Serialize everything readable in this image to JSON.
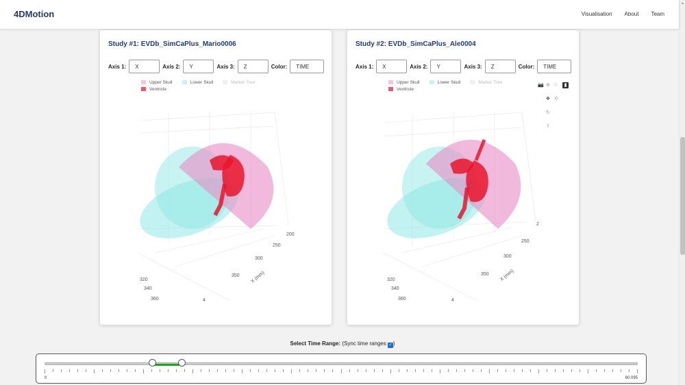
{
  "app": {
    "brand": "4DMotion"
  },
  "nav": [
    {
      "label": "Visualisation"
    },
    {
      "label": "About"
    },
    {
      "label": "Team"
    }
  ],
  "studies": [
    {
      "title": "Study #1: EVDb_SimCaPlus_Mario0006",
      "axis1_label": "Axis 1:",
      "axis1_value": "X",
      "axis2_label": "Axis 2:",
      "axis2_value": "Y",
      "axis3_label": "Axis 3:",
      "axis3_value": "Z",
      "color_label": "Color:",
      "color_value": "TIME",
      "legend": [
        {
          "label": "Upper Skull"
        },
        {
          "label": "Lower Skull"
        },
        {
          "label": "Marker Tree"
        },
        {
          "label": "Ventricle"
        }
      ],
      "axis_ticks": [
        "200",
        "250",
        "300",
        "350",
        "320",
        "340",
        "360",
        "4"
      ],
      "axis_title": "X (mm)"
    },
    {
      "title": "Study #2: EVDb_SimCaPlus_Ale0004",
      "axis1_label": "Axis 1:",
      "axis1_value": "X",
      "axis2_label": "Axis 2:",
      "axis2_value": "Y",
      "axis3_label": "Axis 3:",
      "axis3_value": "Z",
      "color_label": "Color:",
      "color_value": "TIME",
      "legend": [
        {
          "label": "Upper Skull"
        },
        {
          "label": "Lower Skull"
        },
        {
          "label": "Marker Tree"
        },
        {
          "label": "Ventricle"
        }
      ],
      "axis_ticks": [
        "2",
        "250",
        "300",
        "350",
        "320",
        "340",
        "360",
        "4"
      ],
      "axis_title": "X (mm)"
    }
  ],
  "time_range": {
    "label_bold": "Select Time Range:",
    "label_rest": "(Sync time ranges",
    "label_close": ")",
    "sync_checked": true,
    "min_label": "0",
    "max_label": "60.095",
    "range_start_fraction": 0.183,
    "range_end_fraction": 0.232
  },
  "colors": {
    "brand": "#1f3a78",
    "upper_skull": "#e88cc4",
    "lower_skull": "#8fe8e6",
    "ventricle": "#e8152c",
    "range_fill": "#1aa81a"
  },
  "icons": [
    "camera-icon",
    "zoom-icon",
    "home-icon",
    "chart-icon",
    "pan-icon",
    "orbit-icon",
    "turntable-icon",
    "upload-icon"
  ]
}
